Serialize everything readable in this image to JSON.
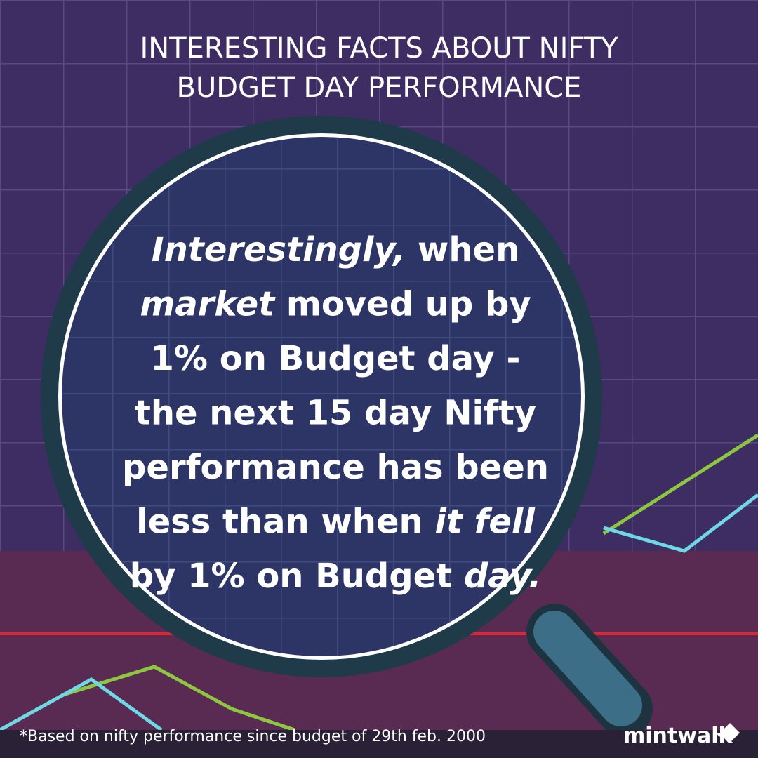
{
  "header": {
    "title_lines": [
      "INTERESTING FACTS ABOUT NIFTY",
      "BUDGET DAY PERFORMANCE"
    ]
  },
  "body": {
    "lines": [
      [
        {
          "text": "Interestingly,",
          "italic": true
        },
        {
          "text": " when",
          "italic": false
        }
      ],
      [
        {
          "text": "market",
          "italic": true
        },
        {
          "text": " moved up by",
          "italic": false
        }
      ],
      [
        {
          "text": "1% on Budget day -",
          "italic": false
        }
      ],
      [
        {
          "text": "the next 15 day Nifty",
          "italic": false
        }
      ],
      [
        {
          "text": "performance has been",
          "italic": false
        }
      ],
      [
        {
          "text": "less than when ",
          "italic": false
        },
        {
          "text": "it fell",
          "italic": true
        }
      ],
      [
        {
          "text": "by 1% on Budget ",
          "italic": false
        },
        {
          "text": "day.",
          "italic": true
        }
      ]
    ]
  },
  "footer": {
    "note": "*Based on nifty performance since budget of 29th feb. 2000",
    "brand": "mintwalk"
  }
}
